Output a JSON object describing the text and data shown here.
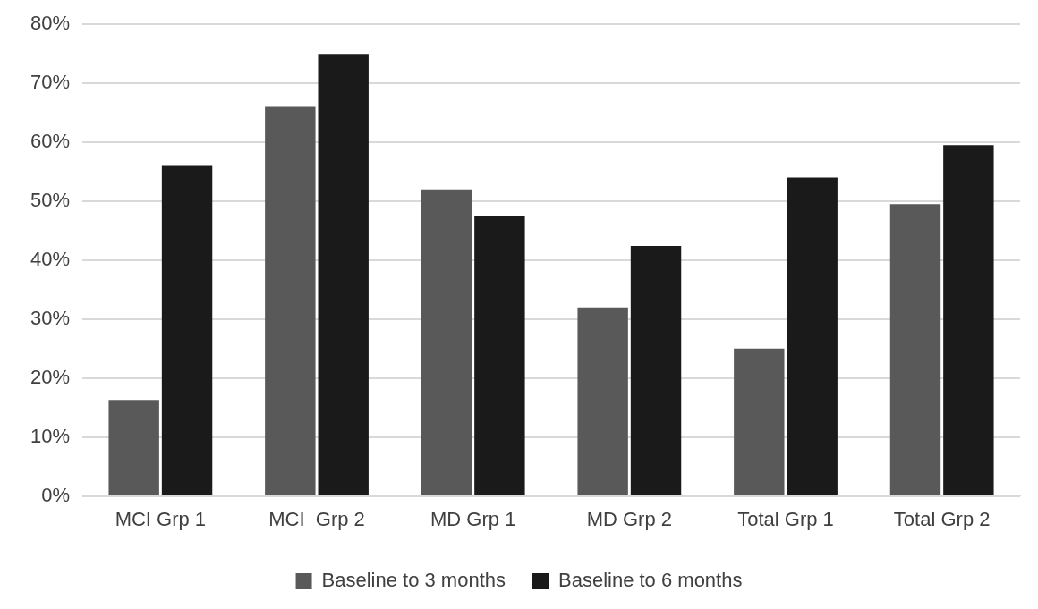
{
  "chart_data": {
    "type": "bar",
    "categories": [
      "MCI Grp 1",
      "MCI  Grp 2",
      "MD Grp 1",
      "MD Grp 2",
      "Total Grp 1",
      "Total Grp 2"
    ],
    "series": [
      {
        "name": "Baseline to 3 months",
        "color": "#595959",
        "values": [
          16.3,
          66,
          52,
          32,
          25,
          49.5
        ]
      },
      {
        "name": "Baseline to 6 months",
        "color": "#1a1a1a",
        "values": [
          56,
          75,
          47.5,
          42.4,
          54,
          59.5
        ]
      }
    ],
    "ylim": [
      0,
      80
    ],
    "yticks": [
      {
        "value": 0,
        "label": "0%"
      },
      {
        "value": 10,
        "label": "10%"
      },
      {
        "value": 20,
        "label": "20%"
      },
      {
        "value": 30,
        "label": "30%"
      },
      {
        "value": 40,
        "label": "40%"
      },
      {
        "value": 50,
        "label": "50%"
      },
      {
        "value": 60,
        "label": "60%"
      },
      {
        "value": 70,
        "label": "70%"
      },
      {
        "value": 80,
        "label": "80%"
      }
    ],
    "grid": "y",
    "legend": "bottom"
  }
}
